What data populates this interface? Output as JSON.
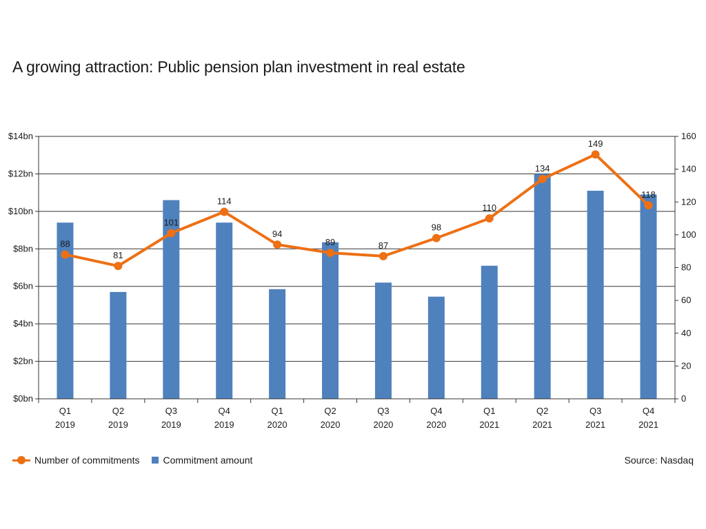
{
  "title": "A growing attraction: Public pension plan investment in real estate",
  "source": "Source: Nasdaq",
  "colors": {
    "bar": "#4f81bd",
    "line": "#ed7014",
    "axis": "#333333",
    "grid": "#333333"
  },
  "legend": {
    "line_label": "Number of commitments",
    "bar_label": "Commitment amount"
  },
  "chart_data": {
    "type": "bar",
    "title": "A growing attraction: Public pension plan investment in real estate",
    "categories": [
      [
        "Q1",
        "2019"
      ],
      [
        "Q2",
        "2019"
      ],
      [
        "Q3",
        "2019"
      ],
      [
        "Q4",
        "2019"
      ],
      [
        "Q1",
        "2020"
      ],
      [
        "Q2",
        "2020"
      ],
      [
        "Q3",
        "2020"
      ],
      [
        "Q4",
        "2020"
      ],
      [
        "Q1",
        "2021"
      ],
      [
        "Q2",
        "2021"
      ],
      [
        "Q3",
        "2021"
      ],
      [
        "Q4",
        "2021"
      ]
    ],
    "series": [
      {
        "name": "Commitment amount",
        "type": "bar",
        "axis": "left",
        "values": [
          9.4,
          5.7,
          10.6,
          9.4,
          5.85,
          8.35,
          6.2,
          5.45,
          7.1,
          12.0,
          11.1,
          10.9
        ]
      },
      {
        "name": "Number of commitments",
        "type": "line",
        "axis": "right",
        "values": [
          88,
          81,
          101,
          114,
          94,
          89,
          87,
          98,
          110,
          134,
          149,
          118
        ],
        "data_labels": [
          "88",
          "81",
          "101",
          "114",
          "94",
          "89",
          "87",
          "98",
          "110",
          "134",
          "149",
          "118"
        ]
      }
    ],
    "left_axis": {
      "ylim": [
        0,
        14
      ],
      "tick_values": [
        0,
        2,
        4,
        6,
        8,
        10,
        12,
        14
      ],
      "tick_labels": [
        "$0bn",
        "$2bn",
        "$4bn",
        "$6bn",
        "$8bn",
        "$10bn",
        "$12bn",
        "$14bn"
      ]
    },
    "right_axis": {
      "ylim": [
        0,
        160
      ],
      "tick_labels": [
        "0",
        "20",
        "40",
        "60",
        "80",
        "100",
        "120",
        "140",
        "160"
      ]
    },
    "grid": true,
    "legend_position": "bottom-left"
  }
}
